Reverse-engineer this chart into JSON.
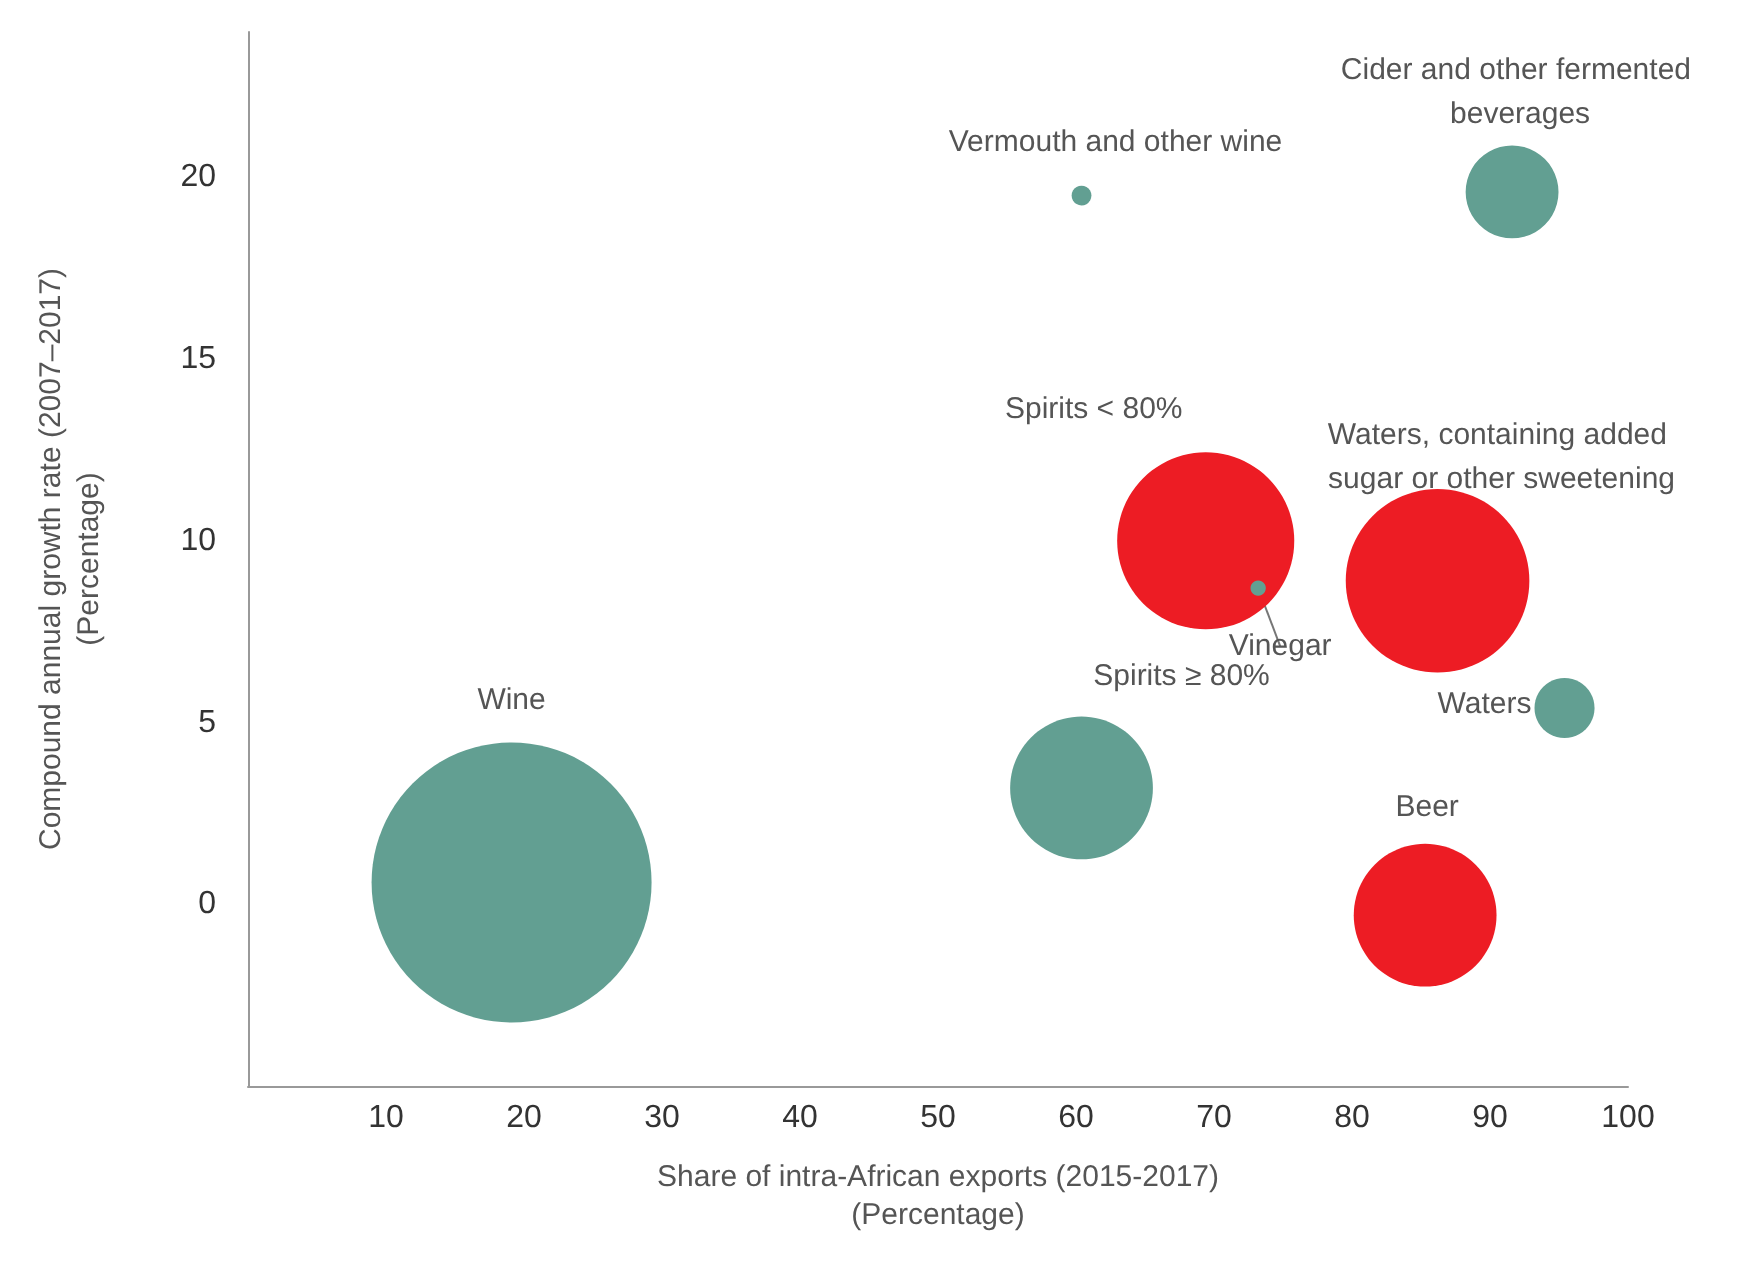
{
  "chart_data": {
    "type": "bubble",
    "xlabel": "Share of intra-African exports (2015-2017)\n(Percentage)",
    "ylabel": "Compound annual growth rate (2007–2017)\n(Percentage)",
    "xlim": [
      0,
      100
    ],
    "xticks": [
      10,
      20,
      30,
      40,
      50,
      60,
      70,
      80,
      90,
      100
    ],
    "ylim": [
      -5,
      24
    ],
    "yticks": [
      0,
      5,
      10,
      15,
      20
    ],
    "grid": false,
    "legend": false,
    "series": [
      {
        "name": "Wine",
        "color": "#629f92",
        "x": [
          19.1
        ],
        "values": [
          0.6
        ],
        "sizes": [
          1
        ]
      },
      {
        "name": "Spirits ≥ 80%",
        "color": "#629f92",
        "x": [
          60.4
        ],
        "values": [
          3.2
        ],
        "sizes": [
          0.26
        ]
      },
      {
        "name": "Vermouth and other wine",
        "color": "#629f92",
        "x": [
          60.4
        ],
        "values": [
          19.5
        ],
        "sizes": [
          0.005
        ]
      },
      {
        "name": "Cider and other fermented beverages",
        "color": "#629f92",
        "x": [
          91.6
        ],
        "values": [
          19.6
        ],
        "sizes": [
          0.11
        ]
      },
      {
        "name": "Spirits < 80%",
        "color": "#ed1c24",
        "x": [
          69.4
        ],
        "values": [
          10.0
        ],
        "sizes": [
          0.4
        ]
      },
      {
        "name": "Vinegar",
        "color": "#629f92",
        "x": [
          73.2
        ],
        "values": [
          8.7
        ],
        "sizes": [
          0.003
        ]
      },
      {
        "name": "Waters, containing added sugar or other sweetening",
        "color": "#ed1c24",
        "x": [
          86.2
        ],
        "values": [
          8.9
        ],
        "sizes": [
          0.43
        ]
      },
      {
        "name": "Waters",
        "color": "#629f92",
        "x": [
          95.4
        ],
        "values": [
          5.4
        ],
        "sizes": [
          0.046
        ]
      },
      {
        "name": "Beer",
        "color": "#ed1c24",
        "x": [
          85.3
        ],
        "values": [
          -0.3
        ],
        "sizes": [
          0.26
        ]
      }
    ]
  }
}
